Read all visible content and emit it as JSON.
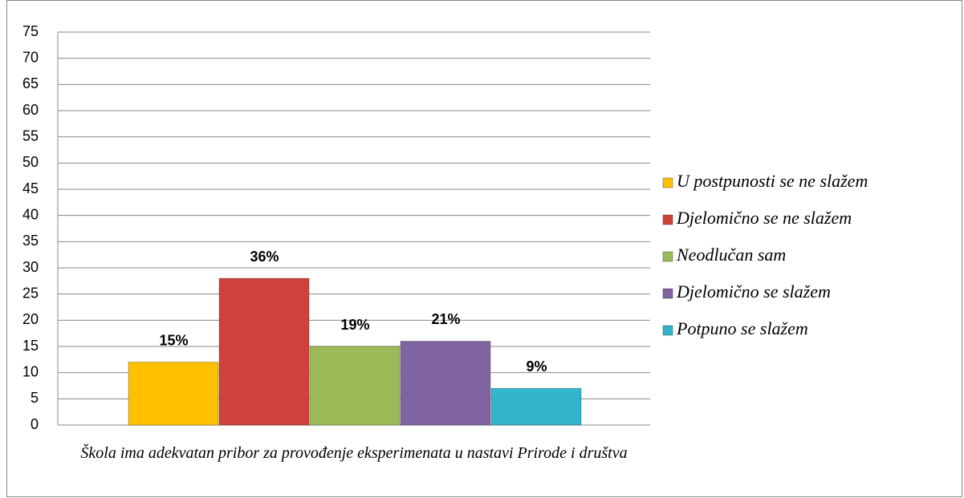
{
  "chart_data": {
    "type": "bar",
    "categories": [
      "Škola ima adekvatan pribor za provođenje eksperimenata u nastavi Prirode i društva"
    ],
    "series": [
      {
        "name": "U postpunosti se ne slažem",
        "color": "#ffc000",
        "values": [
          12
        ],
        "value_labels": [
          "15%"
        ]
      },
      {
        "name": "Djelomično se ne slažem",
        "color": "#d0403c",
        "values": [
          28
        ],
        "value_labels": [
          "36%"
        ]
      },
      {
        "name": "Neodlučan sam",
        "color": "#9bbb59",
        "values": [
          15
        ],
        "value_labels": [
          "19%"
        ]
      },
      {
        "name": "Djelomično se slažem",
        "color": "#8064a2",
        "values": [
          16
        ],
        "value_labels": [
          "21%"
        ]
      },
      {
        "name": "Potpuno se slažem",
        "color": "#31b4cc",
        "values": [
          7
        ],
        "value_labels": [
          "9%"
        ]
      }
    ],
    "ylim": [
      0,
      75
    ],
    "yticks": [
      0,
      5,
      10,
      15,
      20,
      25,
      30,
      35,
      40,
      45,
      50,
      55,
      60,
      65,
      70,
      75
    ],
    "grid": true,
    "legend": "right"
  }
}
